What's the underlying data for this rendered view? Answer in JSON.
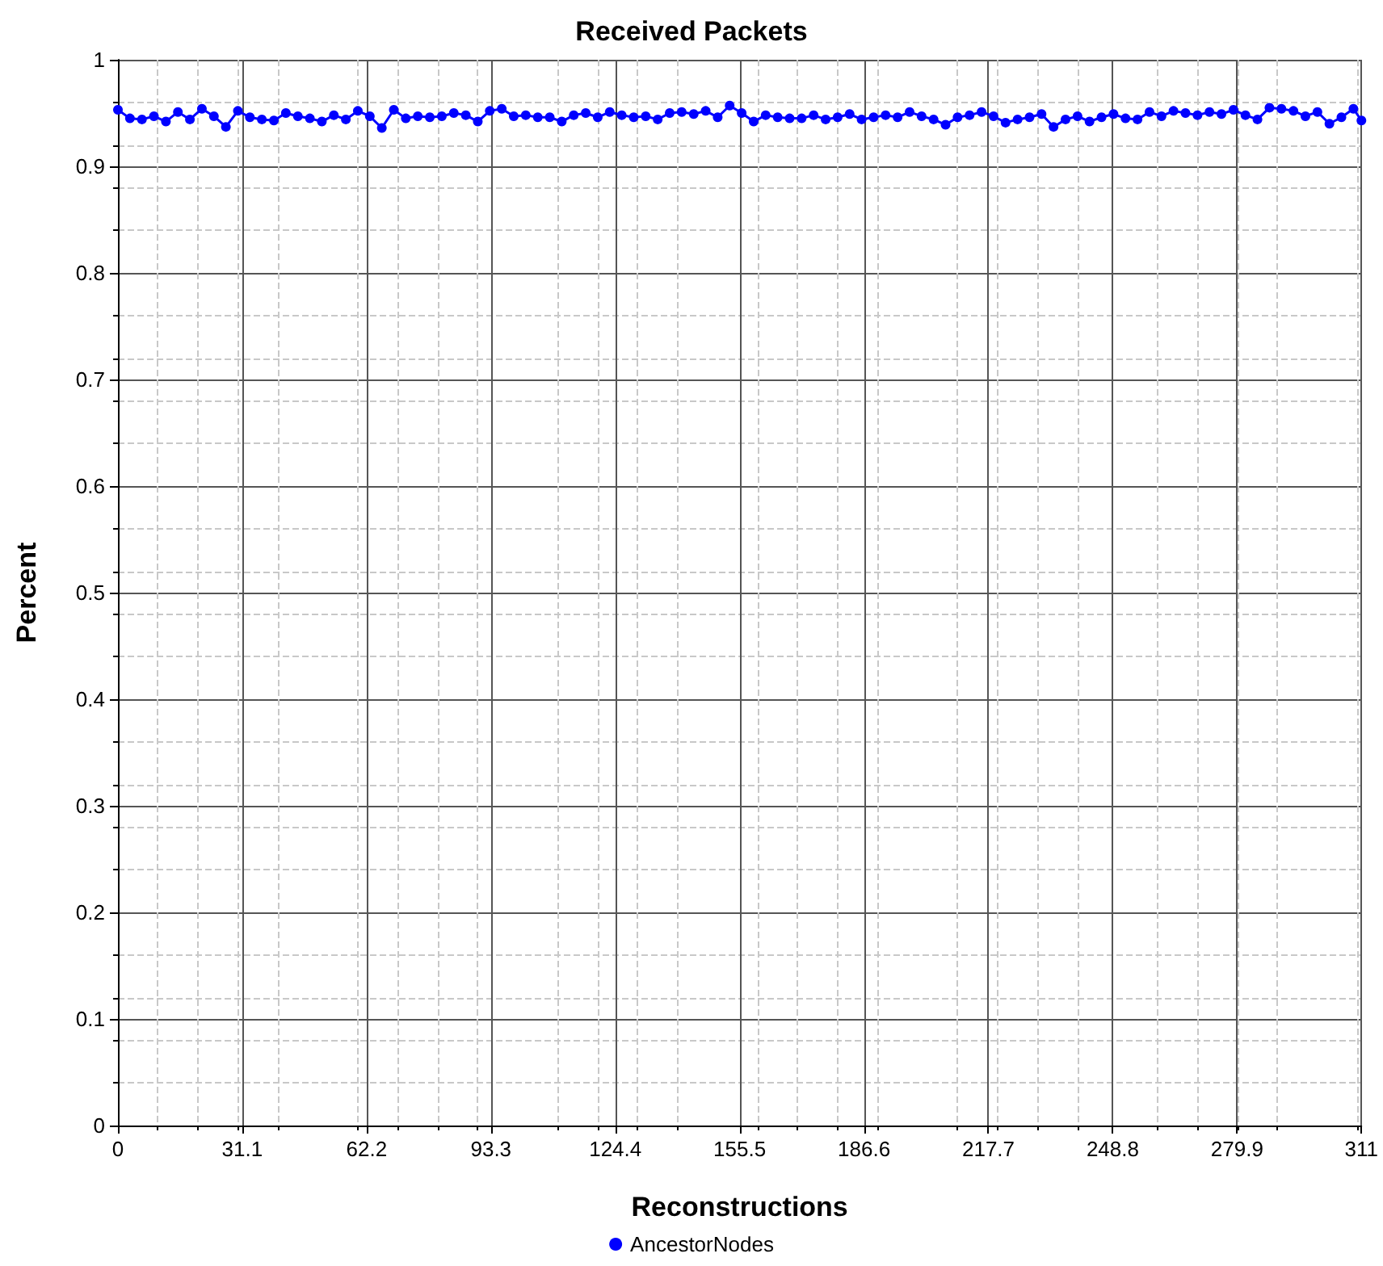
{
  "chart_data": {
    "type": "line",
    "title": "Received Packets",
    "xlabel": "Reconstructions",
    "ylabel": "Percent",
    "x": [
      0,
      3,
      6,
      9,
      12,
      15,
      18,
      21,
      24,
      27,
      30,
      33,
      36,
      39,
      42,
      45,
      48,
      51,
      54,
      57,
      60,
      63,
      66,
      69,
      72,
      75,
      78,
      81,
      84,
      87,
      90,
      93,
      96,
      99,
      102,
      105,
      108,
      111,
      114,
      117,
      120,
      123,
      126,
      129,
      132,
      135,
      138,
      141,
      144,
      147,
      150,
      153,
      156,
      159,
      162,
      165,
      168,
      171,
      174,
      177,
      180,
      183,
      186,
      189,
      192,
      195,
      198,
      201,
      204,
      207,
      210,
      213,
      216,
      219,
      222,
      225,
      228,
      231,
      234,
      237,
      240,
      243,
      246,
      249,
      252,
      255,
      258,
      261,
      264,
      267,
      270,
      273,
      276,
      279,
      282,
      285,
      288,
      291,
      294,
      297,
      300,
      303,
      306,
      309,
      311
    ],
    "series": [
      {
        "name": "AncestorNodes",
        "color": "#0000ff",
        "values": [
          0.953,
          0.945,
          0.944,
          0.947,
          0.942,
          0.951,
          0.944,
          0.954,
          0.947,
          0.937,
          0.952,
          0.946,
          0.944,
          0.943,
          0.95,
          0.947,
          0.945,
          0.942,
          0.948,
          0.944,
          0.952,
          0.947,
          0.936,
          0.953,
          0.945,
          0.947,
          0.946,
          0.947,
          0.95,
          0.948,
          0.942,
          0.952,
          0.954,
          0.947,
          0.948,
          0.946,
          0.946,
          0.942,
          0.948,
          0.95,
          0.946,
          0.951,
          0.948,
          0.946,
          0.947,
          0.944,
          0.95,
          0.951,
          0.949,
          0.952,
          0.946,
          0.957,
          0.95,
          0.942,
          0.948,
          0.946,
          0.945,
          0.945,
          0.948,
          0.944,
          0.946,
          0.949,
          0.944,
          0.946,
          0.948,
          0.946,
          0.951,
          0.947,
          0.944,
          0.939,
          0.946,
          0.948,
          0.951,
          0.947,
          0.941,
          0.944,
          0.946,
          0.949,
          0.937,
          0.944,
          0.947,
          0.942,
          0.946,
          0.949,
          0.945,
          0.944,
          0.951,
          0.947,
          0.952,
          0.95,
          0.948,
          0.951,
          0.949,
          0.953,
          0.948,
          0.944,
          0.955,
          0.954,
          0.952,
          0.947,
          0.951,
          0.94,
          0.946,
          0.954,
          0.943
        ]
      }
    ],
    "xlim": [
      0,
      311
    ],
    "xticks": [
      0,
      31.1,
      62.2,
      93.3,
      124.4,
      155.5,
      186.6,
      217.7,
      248.8,
      279.9,
      311
    ],
    "ylim": [
      0,
      1
    ],
    "yticks": [
      0,
      0.1,
      0.2,
      0.3,
      0.4,
      0.5,
      0.6,
      0.7,
      0.8,
      0.9,
      1
    ],
    "grid": true,
    "legend": "bottom",
    "marker": "circle",
    "line_style": "solid"
  }
}
